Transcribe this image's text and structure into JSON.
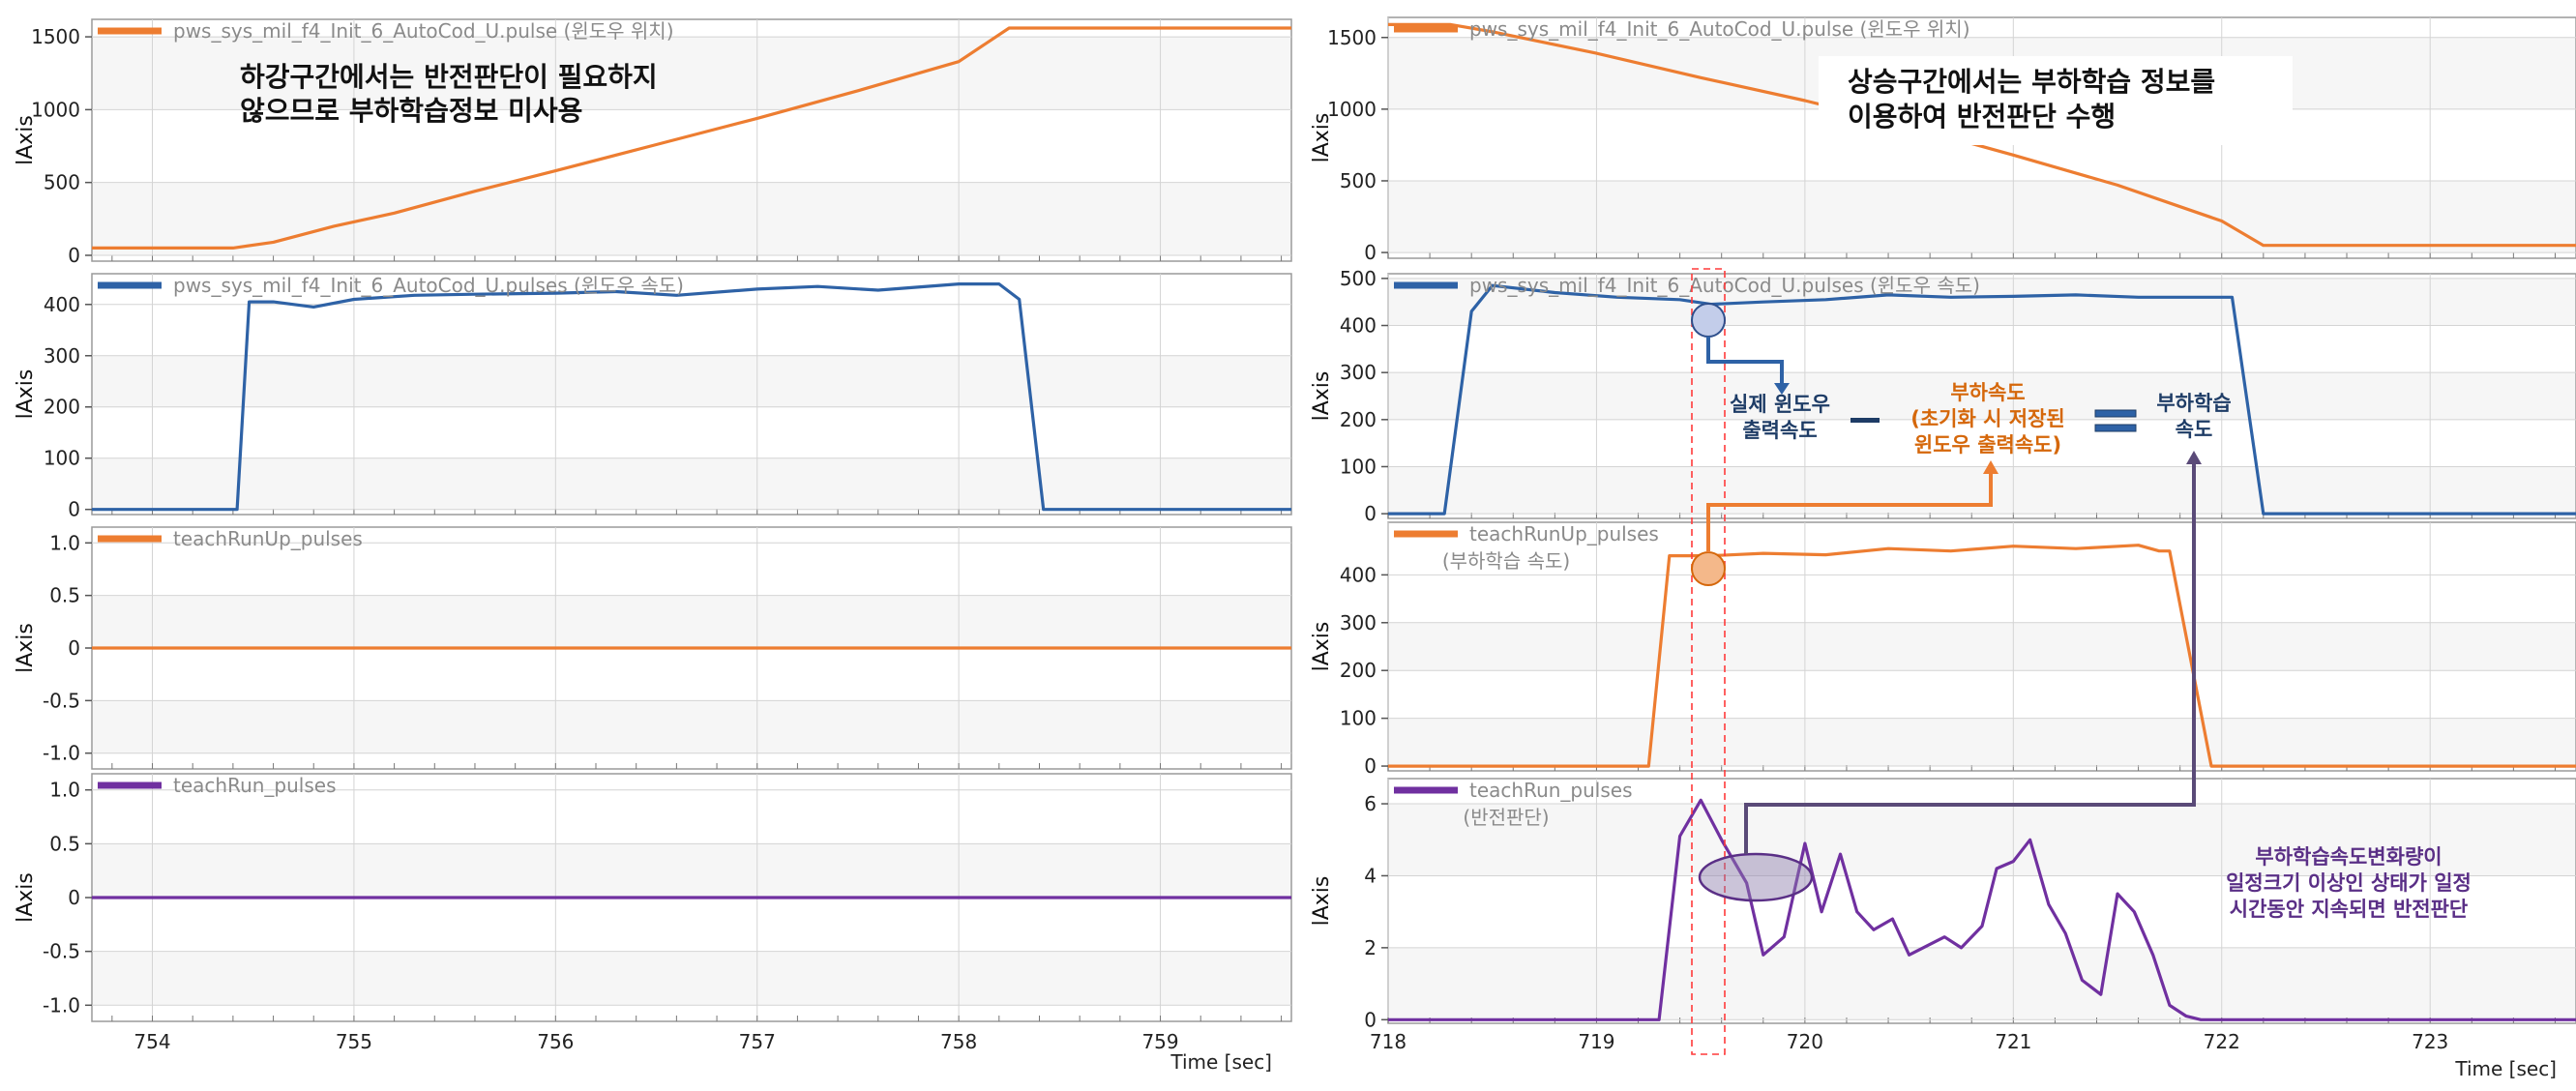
{
  "colors": {
    "position": "#ed7d31",
    "speed": "#2e62a6",
    "teach_up": "#ed7d31",
    "teach_run": "#7030a0",
    "grid": "#d4d4d4",
    "plot_bg": "#ffffff",
    "band_bg": "#f6f6f6",
    "frame": "#9a9a9a",
    "navy_text": "#1e3c66",
    "orange_text": "#d5670a",
    "purple_text": "#5a2f86"
  },
  "left": {
    "time_label": "Time [sec]",
    "annotation": [
      "하강구간에서는 반전판단이 필요하지",
      "않으므로 부하학습정보 미사용"
    ],
    "panels": [
      {
        "legend": "pws_sys_mil_f4_Init_6_AutoCod_U.pulse (윈도우 위치)",
        "ylabel": "lAxis"
      },
      {
        "legend": "pws_sys_mil_f4_Init_6_AutoCod_U.pulses (윈도우 속도)",
        "ylabel": "lAxis"
      },
      {
        "legend": "teachRunUp_pulses",
        "ylabel": "lAxis"
      },
      {
        "legend": "teachRun_pulses",
        "ylabel": "lAxis"
      }
    ]
  },
  "right": {
    "time_label": "Time [sec]",
    "annotation": [
      "상승구간에서는 부하학습 정보를",
      "이용하여 반전판단 수행"
    ],
    "panels": [
      {
        "legend": "pws_sys_mil_f4_Init_6_AutoCod_U.pulse (윈도우 위치)",
        "ylabel": "lAxis"
      },
      {
        "legend": "pws_sys_mil_f4_Init_6_AutoCod_U.pulses (윈도우 속도)",
        "ylabel": "lAxis"
      },
      {
        "legend": "teachRunUp_pulses",
        "sublegend": "(부하학습 속도)",
        "ylabel": "lAxis"
      },
      {
        "legend": "teachRun_pulses",
        "sublegend": "(반전판단)",
        "ylabel": "lAxis"
      }
    ],
    "callouts": {
      "actual_speed": [
        "실제 윈도우",
        "출력속도"
      ],
      "load_speed": [
        "부하속도",
        "(초기화 시 저장된",
        "윈도우 출력속도)"
      ],
      "learn_speed": [
        "부하학습",
        "속도"
      ],
      "reverse_rule": [
        "부하학습속도변화량이",
        "일정크기 이상인 상태가 일정",
        "시간동안 지속되면 반전판단"
      ]
    }
  },
  "chart_data": [
    {
      "type": "line",
      "title": "",
      "xlabel": "Time [sec]",
      "xlim": [
        753.7,
        759.65
      ],
      "xticks": [
        754,
        755,
        756,
        757,
        758,
        759
      ],
      "panels": [
        {
          "ylabel": "lAxis",
          "ylim": [
            -40,
            1620
          ],
          "yticks": [
            0,
            500,
            1000,
            1500
          ],
          "series": [
            {
              "name": "pws_sys_mil_f4_Init_6_AutoCod_U.pulse (윈도우 위치)",
              "x": [
                753.7,
                754.4,
                754.6,
                754.9,
                755.2,
                755.6,
                756.0,
                756.5,
                757.0,
                757.5,
                758.0,
                758.25,
                759.65
              ],
              "y": [
                50,
                50,
                90,
                200,
                290,
                440,
                580,
                760,
                940,
                1130,
                1330,
                1560,
                1560
              ]
            }
          ]
        },
        {
          "ylabel": "lAxis",
          "ylim": [
            -10,
            460
          ],
          "yticks": [
            0,
            100,
            200,
            300,
            400
          ],
          "series": [
            {
              "name": "pws_sys_mil_f4_Init_6_AutoCod_U.pulses (윈도우 속도)",
              "x": [
                753.7,
                754.42,
                754.48,
                754.6,
                754.8,
                755.0,
                755.3,
                755.6,
                756.0,
                756.3,
                756.6,
                757.0,
                757.3,
                757.6,
                758.0,
                758.2,
                758.3,
                758.42,
                759.65
              ],
              "y": [
                0,
                0,
                405,
                405,
                395,
                410,
                418,
                420,
                422,
                425,
                418,
                430,
                435,
                428,
                440,
                440,
                410,
                0,
                0
              ]
            }
          ]
        },
        {
          "ylabel": "lAxis",
          "ylim": [
            -1.15,
            1.15
          ],
          "yticks": [
            -1.0,
            -0.5,
            0,
            0.5,
            1.0
          ],
          "series": [
            {
              "name": "teachRunUp_pulses",
              "x": [
                753.7,
                759.65
              ],
              "y": [
                0,
                0
              ]
            }
          ]
        },
        {
          "ylabel": "lAxis",
          "ylim": [
            -1.15,
            1.15
          ],
          "yticks": [
            -1.0,
            -0.5,
            0,
            0.5,
            1.0
          ],
          "series": [
            {
              "name": "teachRun_pulses",
              "x": [
                753.7,
                759.65
              ],
              "y": [
                0,
                0
              ]
            }
          ]
        }
      ]
    },
    {
      "type": "line",
      "title": "",
      "xlabel": "Time [sec]",
      "xlim": [
        718.0,
        723.7
      ],
      "xticks": [
        718,
        719,
        720,
        721,
        722,
        723
      ],
      "panels": [
        {
          "ylabel": "lAxis",
          "ylim": [
            -40,
            1640
          ],
          "yticks": [
            0,
            500,
            1000,
            1500
          ],
          "series": [
            {
              "name": "pws_sys_mil_f4_Init_6_AutoCod_U.pulse (윈도우 위치)",
              "x": [
                718.0,
                718.3,
                718.5,
                719.0,
                719.5,
                720.0,
                720.5,
                721.0,
                721.5,
                722.0,
                722.2,
                723.7
              ],
              "y": [
                1590,
                1590,
                1540,
                1390,
                1220,
                1060,
                880,
                680,
                470,
                220,
                50,
                50
              ]
            }
          ]
        },
        {
          "ylabel": "lAxis",
          "ylim": [
            -10,
            510
          ],
          "yticks": [
            0,
            100,
            200,
            300,
            400,
            500
          ],
          "series": [
            {
              "name": "pws_sys_mil_f4_Init_6_AutoCod_U.pulses (윈도우 속도)",
              "x": [
                718.0,
                718.27,
                718.4,
                718.5,
                718.8,
                719.1,
                719.4,
                719.55,
                719.8,
                720.1,
                720.4,
                720.7,
                721.0,
                721.3,
                721.6,
                722.0,
                722.05,
                722.2,
                723.7
              ],
              "y": [
                0,
                0,
                430,
                485,
                470,
                460,
                455,
                445,
                450,
                455,
                465,
                460,
                462,
                465,
                460,
                460,
                460,
                0,
                0
              ]
            }
          ]
        },
        {
          "ylabel": "lAxis",
          "ylim": [
            -10,
            510
          ],
          "yticks": [
            0,
            100,
            200,
            300,
            400
          ],
          "series": [
            {
              "name": "teachRunUp_pulses",
              "x": [
                718.0,
                719.25,
                719.35,
                719.55,
                719.8,
                720.1,
                720.4,
                720.7,
                721.0,
                721.3,
                721.6,
                721.7,
                721.75,
                721.95,
                723.7
              ],
              "y": [
                0,
                0,
                440,
                440,
                445,
                442,
                455,
                450,
                460,
                455,
                462,
                450,
                450,
                0,
                0
              ]
            }
          ]
        },
        {
          "ylabel": "lAxis",
          "ylim": [
            -0.1,
            6.7
          ],
          "yticks": [
            0,
            2,
            4,
            6
          ],
          "series": [
            {
              "name": "teachRun_pulses",
              "x": [
                718.0,
                719.3,
                719.4,
                719.5,
                719.6,
                719.72,
                719.8,
                719.9,
                720.0,
                720.08,
                720.17,
                720.25,
                720.33,
                720.42,
                720.5,
                720.67,
                720.75,
                720.85,
                720.92,
                721.0,
                721.08,
                721.17,
                721.25,
                721.33,
                721.42,
                721.5,
                721.58,
                721.67,
                721.75,
                721.83,
                721.9,
                723.7
              ],
              "y": [
                0,
                0,
                5.1,
                6.1,
                5.0,
                3.8,
                1.8,
                2.3,
                4.9,
                3.0,
                4.6,
                3.0,
                2.5,
                2.8,
                1.8,
                2.3,
                2.0,
                2.6,
                4.2,
                4.4,
                5.0,
                3.2,
                2.4,
                1.1,
                0.7,
                3.5,
                3.0,
                1.8,
                0.4,
                0.1,
                0,
                0
              ]
            }
          ]
        }
      ]
    }
  ]
}
